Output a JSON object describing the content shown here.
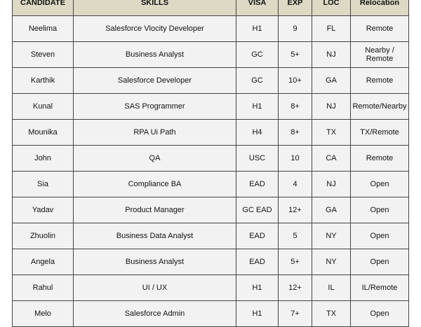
{
  "headers": [
    "CANDIDATE",
    "SKILLS",
    "VISA",
    "EXP",
    "LOC",
    "Relocation"
  ],
  "rows": [
    [
      "Neelima",
      "Salesforce Vlocity Developer",
      "H1",
      "9",
      "FL",
      "Remote"
    ],
    [
      "Steven",
      "Business Analyst",
      "GC",
      "5+",
      "NJ",
      "Nearby / Remote"
    ],
    [
      "Karthik",
      "Salesforce Developer",
      "GC",
      "10+",
      "GA",
      "Remote"
    ],
    [
      "Kunal",
      "SAS Programmer",
      "H1",
      "8+",
      "NJ",
      "Remote/Nearby"
    ],
    [
      "Mounika",
      "RPA Ui Path",
      "H4",
      "8+",
      "TX",
      "TX/Remote"
    ],
    [
      "John",
      "QA",
      "USC",
      "10",
      "CA",
      "Remote"
    ],
    [
      "Sia",
      "Compliance BA",
      "EAD",
      "4",
      "NJ",
      "Open"
    ],
    [
      "Yadav",
      "Product Manager",
      "GC EAD",
      "12+",
      "GA",
      "Open"
    ],
    [
      "Zhuolin",
      "Business Data Analyst",
      "EAD",
      "5",
      "NY",
      "Open"
    ],
    [
      "Angela",
      "Business Analyst",
      "EAD",
      "5+",
      "NY",
      "Open"
    ],
    [
      "Rahul",
      "UI / UX",
      "H1",
      "12+",
      "IL",
      "IL/Remote"
    ],
    [
      "Melo",
      "Salesforce Admin",
      "H1",
      "7+",
      "TX",
      "Open"
    ]
  ]
}
